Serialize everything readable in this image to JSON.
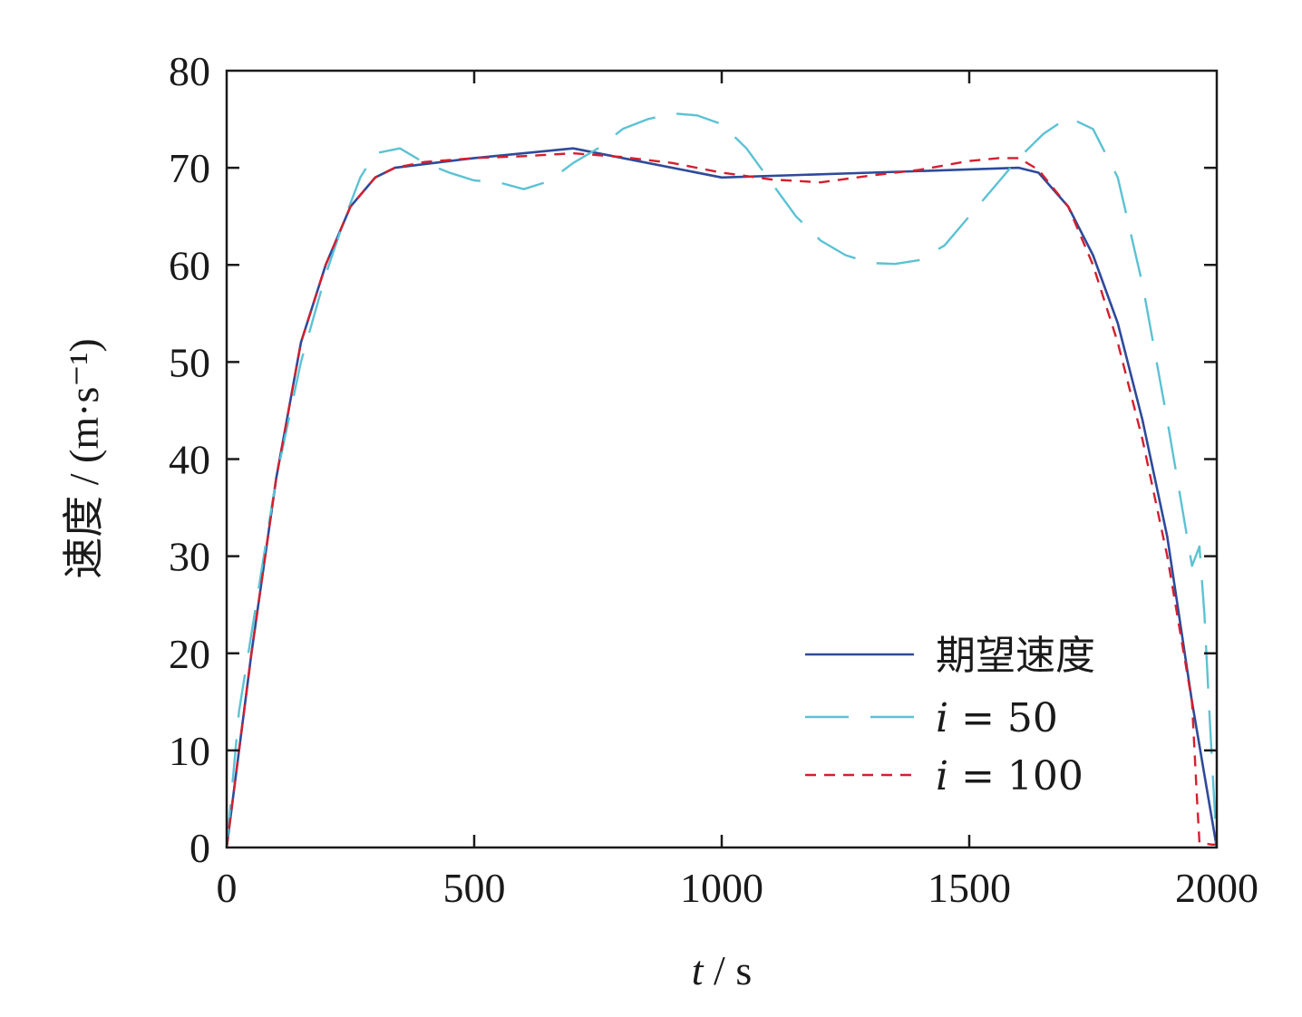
{
  "chart_data": {
    "type": "line",
    "title": "",
    "xlabel": "t / s",
    "ylabel": "速度 / (m·s⁻¹)",
    "xlim": [
      0,
      2000
    ],
    "ylim": [
      0,
      80
    ],
    "xticks": [
      0,
      500,
      1000,
      1500,
      2000
    ],
    "yticks": [
      0,
      10,
      20,
      30,
      40,
      50,
      60,
      70,
      80
    ],
    "grid": false,
    "legend_position": "bottom-right",
    "series": [
      {
        "name": "期望速度",
        "color": "#2e4a9a",
        "dash": "solid",
        "x": [
          0,
          50,
          100,
          150,
          200,
          250,
          300,
          340,
          500,
          700,
          1000,
          1300,
          1600,
          1640,
          1700,
          1750,
          1800,
          1850,
          1900,
          1950,
          2000
        ],
        "y": [
          0,
          20,
          38,
          52,
          60,
          66,
          69,
          70,
          71,
          72,
          69,
          69.5,
          70,
          69.5,
          66,
          61,
          54,
          44,
          32,
          15,
          0
        ]
      },
      {
        "name": "i = 50",
        "color": "#5bc2d4",
        "dash": "long-dash",
        "x": [
          0,
          25,
          50,
          100,
          150,
          200,
          240,
          270,
          300,
          350,
          400,
          450,
          500,
          550,
          600,
          650,
          700,
          750,
          800,
          850,
          900,
          950,
          1000,
          1050,
          1100,
          1150,
          1200,
          1250,
          1300,
          1350,
          1400,
          1450,
          1500,
          1550,
          1600,
          1650,
          1700,
          1750,
          1800,
          1850,
          1900,
          1950,
          1965,
          1975,
          1985,
          2000
        ],
        "y": [
          0,
          14,
          22,
          38,
          50,
          59,
          65,
          69,
          71.5,
          72,
          70.5,
          69.5,
          68.7,
          68.5,
          67.8,
          68.6,
          70.5,
          72,
          74,
          75,
          75.6,
          75.4,
          74.5,
          72,
          68.5,
          65,
          62.5,
          61,
          60.2,
          60.1,
          60.5,
          62,
          65,
          68,
          71,
          73.5,
          75.2,
          74,
          69,
          58,
          44,
          29,
          31,
          24,
          14,
          0
        ]
      },
      {
        "name": "i = 100",
        "color": "#d41f2e",
        "dash": "short-dash",
        "x": [
          0,
          50,
          100,
          150,
          200,
          250,
          300,
          340,
          400,
          500,
          600,
          700,
          800,
          900,
          1000,
          1100,
          1200,
          1300,
          1400,
          1500,
          1560,
          1600,
          1640,
          1700,
          1750,
          1800,
          1850,
          1900,
          1950,
          1960,
          1965,
          1990,
          2000
        ],
        "y": [
          0,
          20,
          38,
          52,
          60,
          66,
          69,
          70,
          70.6,
          71,
          71.2,
          71.5,
          71.1,
          70.5,
          69.5,
          68.8,
          68.5,
          69.2,
          69.8,
          70.7,
          71,
          71,
          69.8,
          66,
          60,
          52,
          42,
          30,
          15,
          5,
          0.5,
          0.3,
          0.3
        ]
      }
    ]
  }
}
